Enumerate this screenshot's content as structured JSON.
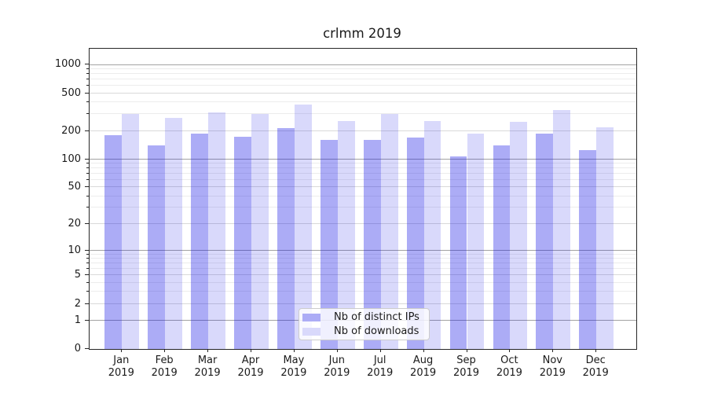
{
  "title": "crlmm 2019",
  "chart_data": {
    "type": "bar",
    "title": "crlmm 2019",
    "yscale": "log1p",
    "grid": true,
    "categories": [
      "Jan",
      "Feb",
      "Mar",
      "Apr",
      "May",
      "Jun",
      "Jul",
      "Aug",
      "Sep",
      "Oct",
      "Nov",
      "Dec"
    ],
    "category_year": "2019",
    "series": [
      {
        "name": "Nb of distinct IPs",
        "values": [
          180,
          140,
          188,
          174,
          215,
          160,
          160,
          170,
          108,
          140,
          186,
          125
        ]
      },
      {
        "name": "Nb of downloads",
        "values": [
          302,
          272,
          314,
          304,
          382,
          256,
          302,
          253,
          186,
          250,
          330,
          220
        ]
      }
    ],
    "y_tick_labels": [
      0,
      1,
      2,
      5,
      10,
      20,
      50,
      100,
      200,
      500,
      1000
    ],
    "y_gridlines_power10": [
      1,
      10,
      100,
      1000
    ],
    "y_gridlines_mid": [
      2,
      5,
      20,
      50,
      200,
      500
    ],
    "y_gridlines_minor": [
      3,
      4,
      6,
      7,
      8,
      9,
      30,
      40,
      60,
      70,
      80,
      90,
      300,
      400,
      600,
      700,
      800,
      900
    ],
    "ylim": [
      0,
      1480
    ],
    "legend_position": "lower center"
  },
  "legend": {
    "items": [
      {
        "label": "Nb of distinct IPs",
        "swatch": "#acacf6"
      },
      {
        "label": "Nb of downloads",
        "swatch": "#d9d9fb"
      }
    ]
  },
  "colors": {
    "bar_distinct_ips": "rgba(17,17,229,0.35)",
    "bar_downloads": "rgba(17,17,229,0.16)",
    "grid_power10": "#a3a3a3",
    "grid_mid": "#d9d9d9",
    "grid_minor": "#ececec",
    "spine": "#262626",
    "text": "#1a1a1a"
  }
}
